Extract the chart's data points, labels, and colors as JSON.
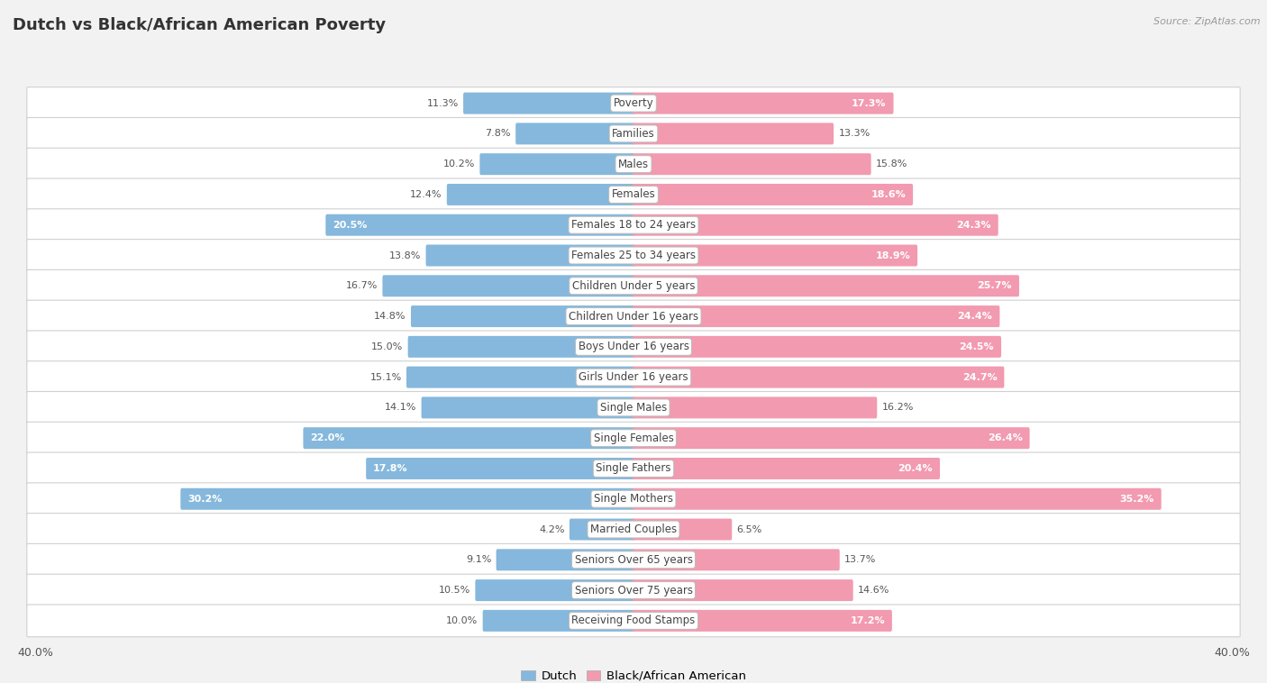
{
  "title": "Dutch vs Black/African American Poverty",
  "source": "Source: ZipAtlas.com",
  "categories": [
    "Poverty",
    "Families",
    "Males",
    "Females",
    "Females 18 to 24 years",
    "Females 25 to 34 years",
    "Children Under 5 years",
    "Children Under 16 years",
    "Boys Under 16 years",
    "Girls Under 16 years",
    "Single Males",
    "Single Females",
    "Single Fathers",
    "Single Mothers",
    "Married Couples",
    "Seniors Over 65 years",
    "Seniors Over 75 years",
    "Receiving Food Stamps"
  ],
  "dutch_values": [
    11.3,
    7.8,
    10.2,
    12.4,
    20.5,
    13.8,
    16.7,
    14.8,
    15.0,
    15.1,
    14.1,
    22.0,
    17.8,
    30.2,
    4.2,
    9.1,
    10.5,
    10.0
  ],
  "black_values": [
    17.3,
    13.3,
    15.8,
    18.6,
    24.3,
    18.9,
    25.7,
    24.4,
    24.5,
    24.7,
    16.2,
    26.4,
    20.4,
    35.2,
    6.5,
    13.7,
    14.6,
    17.2
  ],
  "dutch_color": "#85b8dc",
  "black_color": "#f29ab0",
  "dutch_label": "Dutch",
  "black_label": "Black/African American",
  "xlim": 40.0,
  "white_text_threshold_dutch": 17.0,
  "white_text_threshold_black": 17.0
}
